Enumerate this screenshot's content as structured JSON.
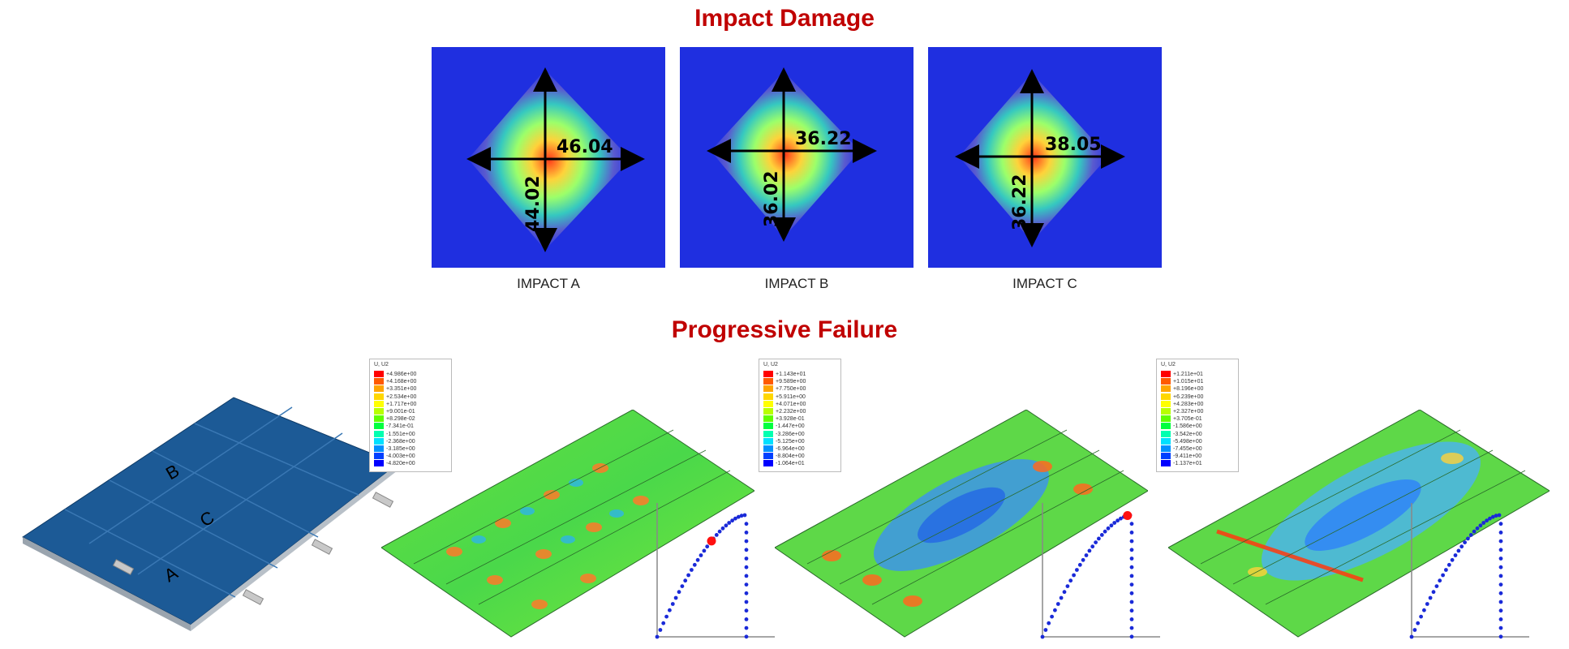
{
  "titles": {
    "impact": "Impact Damage",
    "progressive": "Progressive Failure"
  },
  "colors": {
    "title_red": "#c00000",
    "field_blue": "#1f2fe0",
    "plate_blue": "#1c5a96"
  },
  "impacts": [
    {
      "label": "IMPACT A",
      "horizontal": "46.04",
      "vertical": "44.02"
    },
    {
      "label": "IMPACT B",
      "horizontal": "36.22",
      "vertical": "36.02"
    },
    {
      "label": "IMPACT C",
      "horizontal": "38.05",
      "vertical": "36.22"
    }
  ],
  "model_labels": [
    "B",
    "C",
    "A"
  ],
  "legends": [
    {
      "title": "U, U2",
      "values": [
        "+4.986e+00",
        "+4.168e+00",
        "+3.351e+00",
        "+2.534e+00",
        "+1.717e+00",
        "+9.001e-01",
        "+8.298e-02",
        "-7.341e-01",
        "-1.551e+00",
        "-2.368e+00",
        "-3.185e+00",
        "-4.003e+00",
        "-4.820e+00"
      ]
    },
    {
      "title": "U, U2",
      "values": [
        "+1.143e+01",
        "+9.589e+00",
        "+7.750e+00",
        "+5.911e+00",
        "+4.071e+00",
        "+2.232e+00",
        "+3.928e-01",
        "-1.447e+00",
        "-3.286e+00",
        "-5.125e+00",
        "-6.964e+00",
        "-8.804e+00",
        "-1.064e+01"
      ]
    },
    {
      "title": "U, U2",
      "values": [
        "+1.211e+01",
        "+1.015e+01",
        "+8.196e+00",
        "+6.239e+00",
        "+4.283e+00",
        "+2.327e+00",
        "+3.705e-01",
        "-1.586e+00",
        "-3.542e+00",
        "-5.498e+00",
        "-7.455e+00",
        "-9.411e+00",
        "-1.137e+01"
      ]
    }
  ],
  "legend_colors": [
    "#ff0000",
    "#ff5a00",
    "#ffa500",
    "#ffd700",
    "#ffff00",
    "#b8ff00",
    "#60ff00",
    "#00ff40",
    "#00ffb0",
    "#00e0ff",
    "#0090ff",
    "#0040ff",
    "#0000ff"
  ],
  "load_curves": [
    {
      "marker_fraction": 0.62
    },
    {
      "marker_fraction": 0.97
    },
    {
      "marker_fraction": null
    }
  ]
}
